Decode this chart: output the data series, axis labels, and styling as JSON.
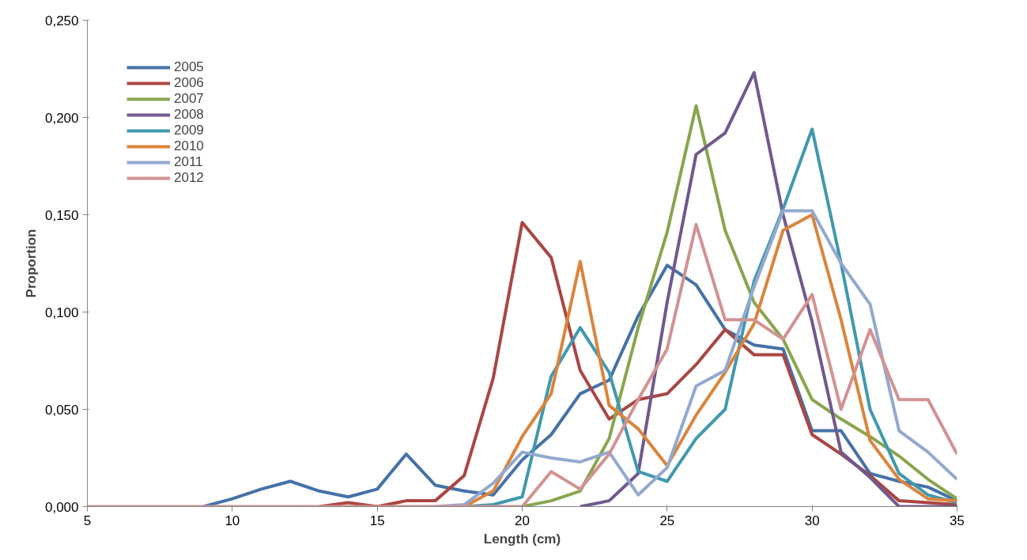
{
  "chart_data": {
    "type": "line",
    "xlabel": "Length (cm)",
    "ylabel": "Proportion",
    "x": [
      5,
      6,
      7,
      8,
      9,
      10,
      11,
      12,
      13,
      14,
      15,
      16,
      17,
      18,
      19,
      20,
      21,
      22,
      23,
      24,
      25,
      26,
      27,
      28,
      29,
      30,
      31,
      32,
      33,
      34,
      35
    ],
    "series": [
      {
        "name": "2005",
        "color": "#4572a7",
        "values": [
          null,
          null,
          null,
          null,
          0,
          0.004,
          0.009,
          0.013,
          0.008,
          0.005,
          0.009,
          0.027,
          0.011,
          0.008,
          0.006,
          0.024,
          0.037,
          0.058,
          0.065,
          0.098,
          0.124,
          0.114,
          0.091,
          0.083,
          0.081,
          0.039,
          0.039,
          0.017,
          0.013,
          0.01,
          0.003
        ]
      },
      {
        "name": "2006",
        "color": "#aa4643",
        "values": [
          null,
          null,
          null,
          null,
          null,
          null,
          null,
          null,
          0,
          0.002,
          0,
          0.003,
          0.003,
          0.016,
          0.066,
          0.146,
          0.128,
          0.07,
          0.045,
          0.055,
          0.058,
          0.073,
          0.091,
          0.078,
          0.078,
          0.037,
          0.027,
          0.016,
          0.003,
          0.002,
          0.001
        ]
      },
      {
        "name": "2007",
        "color": "#89a54e",
        "values": [
          null,
          null,
          null,
          null,
          null,
          null,
          null,
          null,
          null,
          null,
          null,
          null,
          null,
          null,
          null,
          0,
          0.003,
          0.008,
          0.035,
          0.092,
          0.141,
          0.206,
          0.142,
          0.105,
          0.086,
          0.055,
          0.045,
          0.036,
          0.026,
          0.014,
          0.004
        ]
      },
      {
        "name": "2008",
        "color": "#71588f",
        "values": [
          null,
          null,
          null,
          null,
          null,
          null,
          null,
          null,
          null,
          null,
          null,
          null,
          null,
          null,
          null,
          null,
          null,
          0,
          0.003,
          0.017,
          0.105,
          0.181,
          0.192,
          0.223,
          0.15,
          0.095,
          0.028,
          0.015,
          0,
          0,
          0
        ]
      },
      {
        "name": "2009",
        "color": "#4198af",
        "values": [
          null,
          null,
          null,
          null,
          null,
          null,
          null,
          null,
          null,
          null,
          null,
          null,
          null,
          0,
          0.001,
          0.005,
          0.067,
          0.092,
          0.069,
          0.018,
          0.013,
          0.035,
          0.05,
          0.116,
          0.153,
          0.194,
          0.125,
          0.05,
          0.017,
          0.006,
          0.002
        ]
      },
      {
        "name": "2010",
        "color": "#db843d",
        "values": [
          null,
          null,
          null,
          null,
          null,
          null,
          null,
          null,
          null,
          null,
          null,
          null,
          null,
          0,
          0.008,
          0.036,
          0.058,
          0.126,
          0.052,
          0.04,
          0.021,
          0.047,
          0.069,
          0.094,
          0.142,
          0.15,
          0.096,
          0.034,
          0.014,
          0.004,
          0.003
        ]
      },
      {
        "name": "2011",
        "color": "#93a9cf",
        "values": [
          null,
          null,
          null,
          null,
          null,
          null,
          null,
          null,
          null,
          null,
          null,
          null,
          0,
          0.001,
          0.012,
          0.028,
          0.025,
          0.023,
          0.028,
          0.006,
          0.02,
          0.062,
          0.07,
          0.113,
          0.152,
          0.152,
          0.125,
          0.104,
          0.039,
          0.028,
          0.014
        ]
      },
      {
        "name": "2012",
        "color": "#d19392",
        "values": [
          0,
          0,
          0,
          0,
          0,
          0,
          0,
          0,
          0,
          0,
          0,
          0,
          0,
          0,
          0,
          0,
          0.018,
          0.009,
          0.027,
          0.055,
          0.081,
          0.145,
          0.096,
          0.096,
          0.086,
          0.109,
          0.05,
          0.091,
          0.055,
          0.055,
          0.027
        ]
      }
    ],
    "xlim": [
      5,
      35
    ],
    "xticks": [
      5,
      10,
      15,
      20,
      25,
      30,
      35
    ],
    "ylim": [
      0,
      0.25
    ],
    "yticks": [
      {
        "value": 0,
        "label": "0,000"
      },
      {
        "value": 0.05,
        "label": "0,050"
      },
      {
        "value": 0.1,
        "label": "0,100"
      },
      {
        "value": 0.15,
        "label": "0,150"
      },
      {
        "value": 0.2,
        "label": "0,200"
      },
      {
        "value": 0.25,
        "label": "0,250"
      }
    ],
    "grid": false,
    "legend": "top left",
    "marker": "none",
    "line_style": "solid"
  }
}
